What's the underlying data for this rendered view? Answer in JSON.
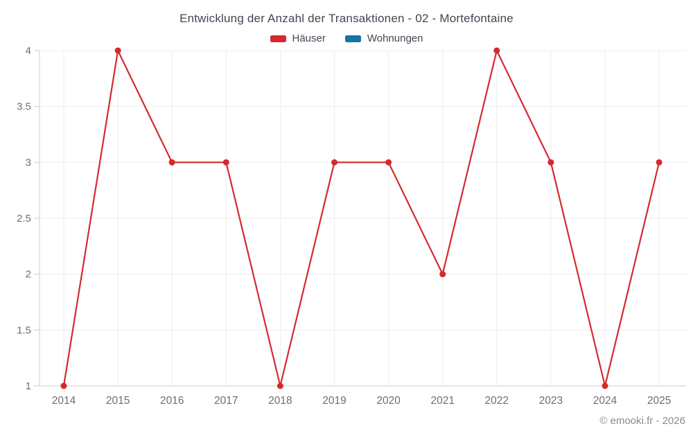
{
  "chart_data": {
    "type": "line",
    "title": "Entwicklung der Anzahl der Transaktionen - 02 - Mortefontaine",
    "categories": [
      "2014",
      "2015",
      "2016",
      "2017",
      "2018",
      "2019",
      "2020",
      "2021",
      "2022",
      "2023",
      "2024",
      "2025"
    ],
    "series": [
      {
        "name": "Häuser",
        "color": "#d5292e",
        "values": [
          1,
          4,
          3,
          3,
          1,
          3,
          3,
          2,
          4,
          3,
          1,
          3
        ]
      },
      {
        "name": "Wohnungen",
        "color": "#1673a6",
        "values": []
      }
    ],
    "xlabel": "",
    "ylabel": "",
    "ylim": [
      1,
      4
    ],
    "y_ticks": [
      1,
      1.5,
      2,
      2.5,
      3,
      3.5,
      4
    ],
    "grid": true,
    "legend_position": "top"
  },
  "footer": {
    "credit": "© emooki.fr - 2026"
  },
  "colors": {
    "haeuser_red": "#d5292e",
    "wohnungen_blue": "#1673a6",
    "title_text": "#3f4751",
    "axis_text": "#6e6e6e",
    "grid_line": "#ececec",
    "axis_line": "#cccccc",
    "footer_text": "#8b8b8b",
    "background": "#ffffff"
  }
}
